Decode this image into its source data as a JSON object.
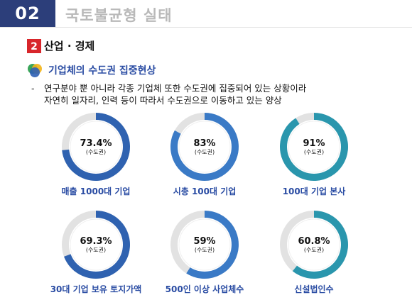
{
  "header": {
    "number": "02",
    "title": "국토불균형 실태"
  },
  "section": {
    "label": "산업 · 경제"
  },
  "subsection": {
    "label": "기업체의 수도권 집중현상"
  },
  "body": {
    "dash": "-",
    "line1": "연구분야 뿐 아니라 각종 기업체 또한 수도권에 집중되어 있는 상황이라",
    "line2": "자연히 일자리, 인력 등이 따라서 수도권으로 이동하고 있는 양상"
  },
  "colors": {
    "blue_dark": "#2f62b0",
    "blue_mid": "#3a7ac6",
    "teal": "#2a96ad",
    "remainder": "#e2e2e2",
    "header_bg": "#2c3e7a",
    "label_blue": "#2a4ca3"
  },
  "chart_data": [
    {
      "type": "pie",
      "label": "매출 1000대 기업",
      "value": 73.4,
      "value_text": "73.4%",
      "caption": "(수도권)",
      "color_key": "blue_dark"
    },
    {
      "type": "pie",
      "label": "시총 100대 기업",
      "value": 83,
      "value_text": "83%",
      "caption": "(수도권)",
      "color_key": "blue_mid"
    },
    {
      "type": "pie",
      "label": "100대 기업 본사",
      "value": 91,
      "value_text": "91%",
      "caption": "(수도권)",
      "color_key": "teal"
    },
    {
      "type": "pie",
      "label": "30대 기업 보유 토지가액",
      "value": 69.3,
      "value_text": "69.3%",
      "caption": "(수도권)",
      "color_key": "blue_dark"
    },
    {
      "type": "pie",
      "label": "500인 이상 사업체수",
      "value": 59,
      "value_text": "59%",
      "caption": "(수도권)",
      "color_key": "blue_mid"
    },
    {
      "type": "pie",
      "label": "신설법인수",
      "value": 60.8,
      "value_text": "60.8%",
      "caption": "(수도권)",
      "color_key": "teal"
    }
  ]
}
